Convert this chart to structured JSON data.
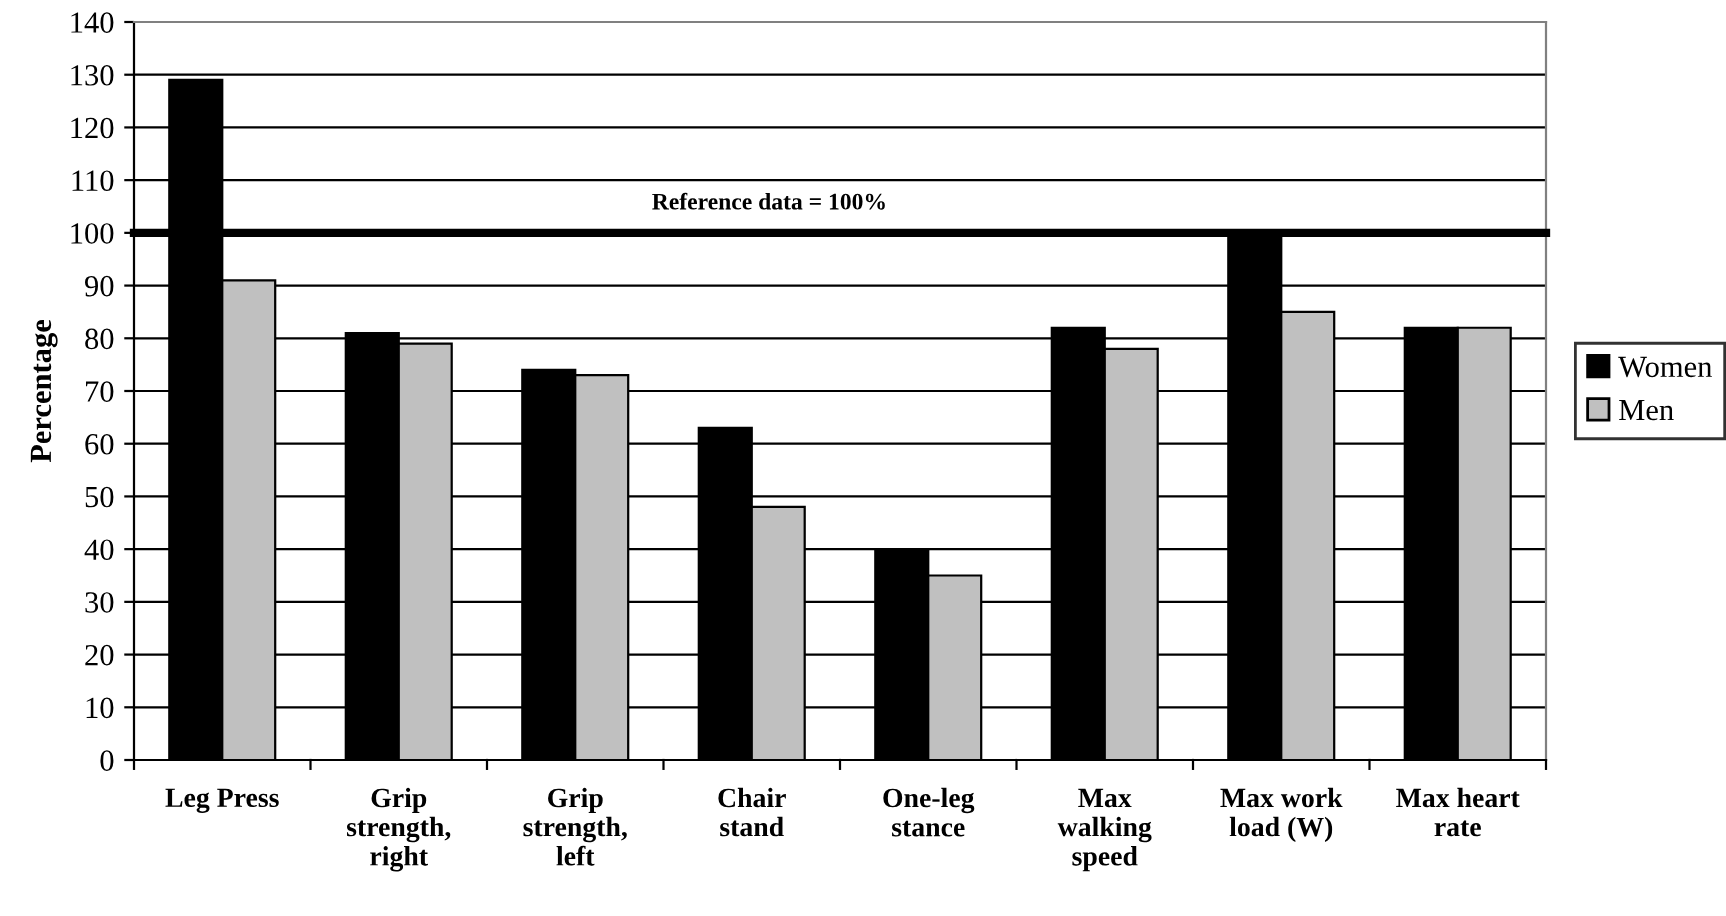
{
  "chart_data": {
    "type": "bar",
    "ylabel": "Percentage",
    "categories": [
      "Leg Press",
      "Grip strength, right",
      "Grip strength, left",
      "Chair stand",
      "One-leg stance",
      "Max walking speed",
      "Max work load (W)",
      "Max heart rate"
    ],
    "series": [
      {
        "name": "Women",
        "color": "#000000",
        "values": [
          129,
          81,
          74,
          63,
          40,
          82,
          100,
          82
        ]
      },
      {
        "name": "Men",
        "color": "#c0c0c0",
        "values": [
          91,
          79,
          73,
          48,
          35,
          78,
          85,
          82
        ]
      }
    ],
    "ylim": [
      0,
      140
    ],
    "yticks": [
      0,
      10,
      20,
      30,
      40,
      50,
      60,
      70,
      80,
      90,
      100,
      110,
      120,
      130,
      140
    ],
    "ref_lines": [
      {
        "axis": "y",
        "value": 100,
        "label": "Reference data = 100%",
        "color": "#000000"
      }
    ],
    "grid": "y",
    "legend": "right"
  }
}
